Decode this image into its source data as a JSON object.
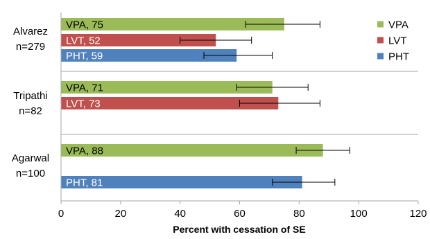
{
  "chart_data": {
    "type": "bar",
    "orientation": "horizontal",
    "title": "",
    "xlabel": "Percent with cessation of SE",
    "ylabel": "",
    "xlim": [
      0,
      120
    ],
    "x_ticks": [
      0,
      20,
      40,
      60,
      80,
      100,
      120
    ],
    "grid": false,
    "legend_position": "top-right",
    "groups": [
      {
        "label_lines": [
          "Alvarez",
          "n=279"
        ],
        "bars": [
          {
            "series": "VPA",
            "label": "VPA, 75",
            "value": 75,
            "error_low": 62,
            "error_high": 87
          },
          {
            "series": "LVT",
            "label": "LVT, 52",
            "value": 52,
            "error_low": 40,
            "error_high": 64
          },
          {
            "series": "PHT",
            "label": "PHT, 59",
            "value": 59,
            "error_low": 48,
            "error_high": 71
          }
        ]
      },
      {
        "label_lines": [
          "Tripathi",
          "n=82"
        ],
        "bars": [
          {
            "series": "VPA",
            "label": "VPA, 71",
            "value": 71,
            "error_low": 59,
            "error_high": 83
          },
          {
            "series": "LVT",
            "label": "LVT, 73",
            "value": 73,
            "error_low": 60,
            "error_high": 87
          }
        ]
      },
      {
        "label_lines": [
          "Agarwal",
          "n=100"
        ],
        "bars": [
          {
            "series": "VPA",
            "label": "VPA, 88",
            "value": 88,
            "error_low": 79,
            "error_high": 97
          },
          {
            "series": "PHT",
            "label": "PHT, 81",
            "value": 81,
            "error_low": 71,
            "error_high": 92
          }
        ]
      }
    ],
    "legend": [
      {
        "name": "VPA",
        "color": "#9bbb59"
      },
      {
        "name": "LVT",
        "color": "#c0504d"
      },
      {
        "name": "PHT",
        "color": "#4f81bd"
      }
    ]
  }
}
